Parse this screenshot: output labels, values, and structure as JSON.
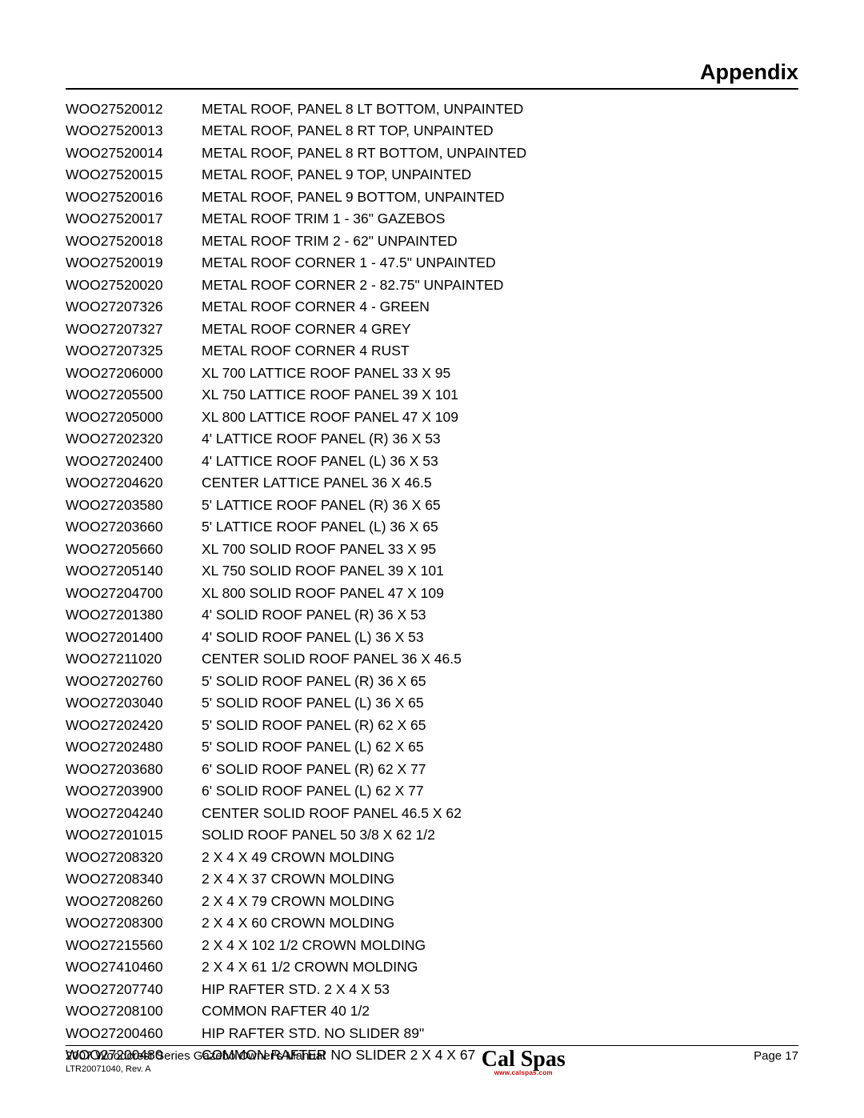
{
  "header": {
    "title": "Appendix"
  },
  "parts": [
    {
      "code": "WOO27520012",
      "desc": "METAL ROOF, PANEL 8 LT BOTTOM, UNPAINTED"
    },
    {
      "code": "WOO27520013",
      "desc": "METAL ROOF, PANEL 8 RT TOP, UNPAINTED"
    },
    {
      "code": "WOO27520014",
      "desc": "METAL ROOF, PANEL 8 RT BOTTOM, UNPAINTED"
    },
    {
      "code": "WOO27520015",
      "desc": "METAL ROOF, PANEL 9 TOP, UNPAINTED"
    },
    {
      "code": "WOO27520016",
      "desc": "METAL ROOF, PANEL 9 BOTTOM, UNPAINTED"
    },
    {
      "code": "WOO27520017",
      "desc": "METAL ROOF TRIM 1 - 36\" GAZEBOS"
    },
    {
      "code": "WOO27520018",
      "desc": "METAL ROOF TRIM 2 - 62\" UNPAINTED"
    },
    {
      "code": "WOO27520019",
      "desc": "METAL ROOF CORNER 1 - 47.5\" UNPAINTED"
    },
    {
      "code": "WOO27520020",
      "desc": "METAL ROOF CORNER 2  - 82.75\" UNPAINTED"
    },
    {
      "code": "WOO27207326",
      "desc": "METAL ROOF CORNER 4 - GREEN"
    },
    {
      "code": "WOO27207327",
      "desc": "METAL ROOF CORNER 4 GREY"
    },
    {
      "code": "WOO27207325",
      "desc": "METAL ROOF CORNER 4 RUST"
    },
    {
      "code": "WOO27206000",
      "desc": "XL 700 LATTICE ROOF PANEL 33 X 95"
    },
    {
      "code": "WOO27205500",
      "desc": "XL 750 LATTICE ROOF PANEL 39 X 101"
    },
    {
      "code": "WOO27205000",
      "desc": "XL 800 LATTICE ROOF PANEL 47 X 109"
    },
    {
      "code": "WOO27202320",
      "desc": "4' LATTICE ROOF PANEL (R) 36 X 53"
    },
    {
      "code": "WOO27202400",
      "desc": "4' LATTICE ROOF PANEL (L) 36 X 53"
    },
    {
      "code": "WOO27204620",
      "desc": "CENTER LATTICE PANEL 36 X 46.5"
    },
    {
      "code": "WOO27203580",
      "desc": "5' LATTICE ROOF PANEL (R) 36 X 65"
    },
    {
      "code": "WOO27203660",
      "desc": "5' LATTICE ROOF PANEL (L) 36 X 65"
    },
    {
      "code": "WOO27205660",
      "desc": "XL 700 SOLID ROOF PANEL 33 X 95"
    },
    {
      "code": "WOO27205140",
      "desc": "XL 750 SOLID ROOF PANEL 39 X 101"
    },
    {
      "code": "WOO27204700",
      "desc": "XL 800 SOLID ROOF PANEL 47 X 109"
    },
    {
      "code": "WOO27201380",
      "desc": "4' SOLID ROOF PANEL (R) 36 X 53"
    },
    {
      "code": "WOO27201400",
      "desc": "4' SOLID ROOF PANEL (L) 36 X 53"
    },
    {
      "code": "WOO27211020",
      "desc": "CENTER SOLID ROOF PANEL 36 X 46.5"
    },
    {
      "code": "WOO27202760",
      "desc": "5' SOLID ROOF PANEL (R) 36 X 65"
    },
    {
      "code": "WOO27203040",
      "desc": "5' SOLID ROOF PANEL (L) 36 X 65"
    },
    {
      "code": "WOO27202420",
      "desc": "5' SOLID ROOF PANEL (R) 62 X 65"
    },
    {
      "code": "WOO27202480",
      "desc": "5' SOLID ROOF PANEL (L) 62 X 65"
    },
    {
      "code": "WOO27203680",
      "desc": "6' SOLID ROOF PANEL (R) 62 X 77"
    },
    {
      "code": "WOO27203900",
      "desc": "6' SOLID ROOF PANEL (L) 62 X 77"
    },
    {
      "code": "WOO27204240",
      "desc": "CENTER SOLID ROOF PANEL 46.5 X 62"
    },
    {
      "code": "WOO27201015",
      "desc": "SOLID ROOF PANEL 50 3/8 X 62 1/2"
    },
    {
      "code": "WOO27208320",
      "desc": "2 X 4 X 49 CROWN MOLDING"
    },
    {
      "code": "WOO27208340",
      "desc": "2 X 4 X 37 CROWN MOLDING"
    },
    {
      "code": "WOO27208260",
      "desc": "2 X 4 X 79 CROWN MOLDING"
    },
    {
      "code": "WOO27208300",
      "desc": "2 X 4 X 60 CROWN MOLDING"
    },
    {
      "code": "WOO27215560",
      "desc": "2 X 4 X 102 1/2 CROWN MOLDING"
    },
    {
      "code": "WOO27410460",
      "desc": "2 X 4 X 61 1/2 CROWN MOLDING"
    },
    {
      "code": "WOO27207740",
      "desc": "HIP RAFTER STD. 2 X 4 X 53"
    },
    {
      "code": "WOO27208100",
      "desc": "COMMON RAFTER 40 1/2"
    },
    {
      "code": "WOO27200460",
      "desc": "HIP RAFTER STD. NO SLIDER 89\""
    },
    {
      "code": "WOO27200480",
      "desc": "COMMON RAFTER NO SLIDER 2 X 4 X 67"
    }
  ],
  "footer": {
    "manual": "2007 Woodcrest Series Gazebo Owner's Manual",
    "rev": "LTR20071040, Rev. A",
    "logo_text": "Cal Spas",
    "logo_url": "www.calspas.com",
    "page": "Page 17"
  }
}
